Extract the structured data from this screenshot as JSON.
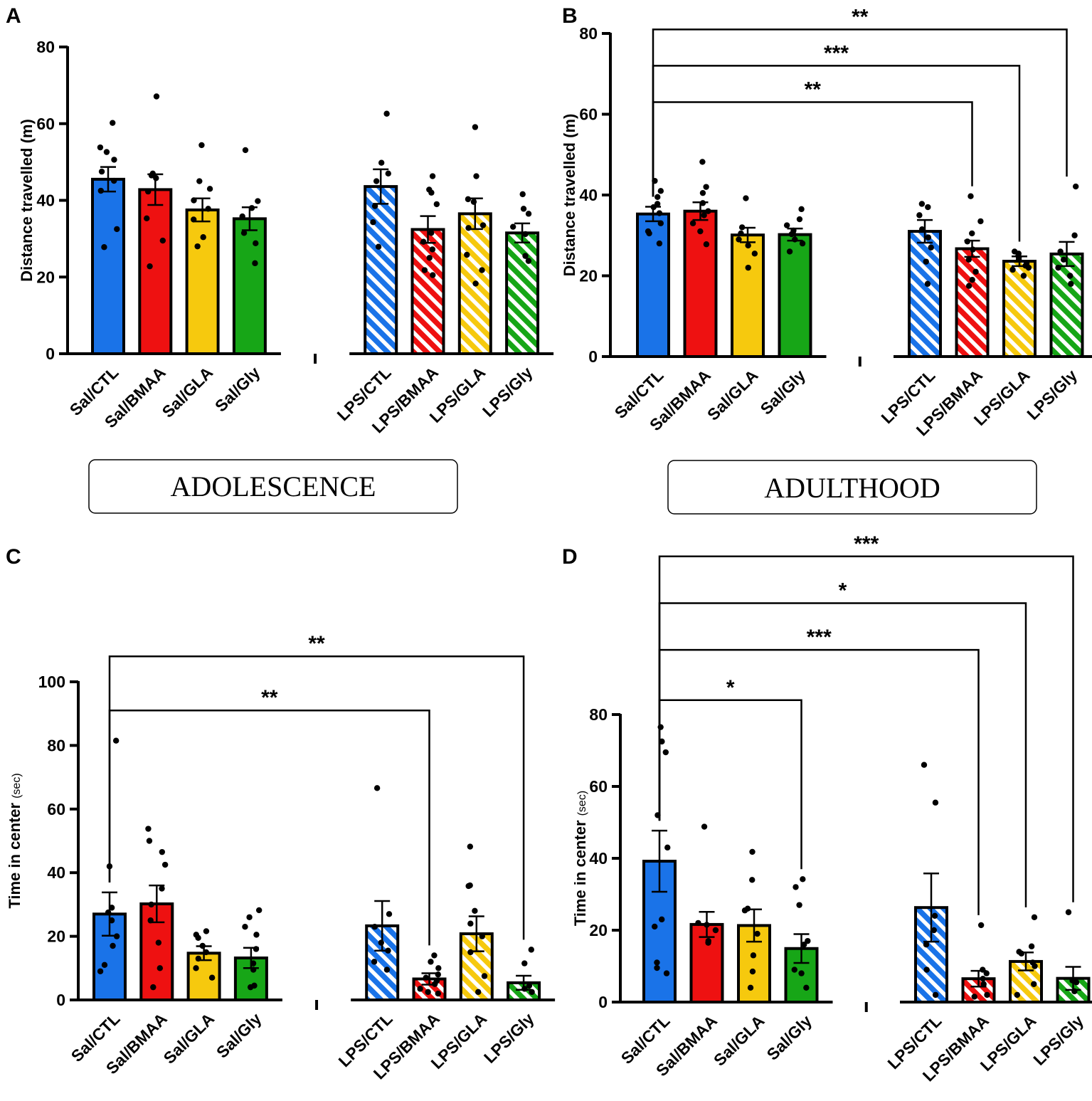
{
  "figure": {
    "period_boxes": [
      {
        "panel": "A",
        "text": "ADOLESCENCE"
      },
      {
        "panel": "B",
        "text": "ADULTHOOD"
      }
    ]
  },
  "palette": {
    "CTL": "#1a73e8",
    "BMAA": "#ee1111",
    "GLA": "#f6c90e",
    "Gly": "#17a617",
    "pattern_stripe": "#ffffff",
    "ink": "#000000"
  },
  "chart_data": [
    {
      "panel": "A",
      "type": "bar",
      "ylabel": "Distance travelled (m)",
      "ylabel_suffix": "",
      "ylim": [
        0,
        80
      ],
      "yticks": [
        "0",
        "20",
        "40",
        "60",
        "80"
      ],
      "categories": [
        "Sal/CTL",
        "Sal/BMAA",
        "Sal/GLA",
        "Sal/Gly",
        "LPS/CTL",
        "LPS/BMAA",
        "LPS/GLA",
        "LPS/Gly"
      ],
      "groups": [
        "CTL",
        "BMAA",
        "GLA",
        "Gly",
        "CTL",
        "BMAA",
        "GLA",
        "Gly"
      ],
      "hatched": [
        false,
        false,
        false,
        false,
        true,
        true,
        true,
        true
      ],
      "values": [
        45.5,
        42.8,
        37.5,
        35.2,
        43.6,
        32.4,
        36.5,
        31.5
      ],
      "sem": [
        3.2,
        4.0,
        3.0,
        3.0,
        4.5,
        3.5,
        4.0,
        2.5
      ],
      "points": [
        [
          60.2,
          53.8,
          52.6,
          50.6,
          47.5,
          45.1,
          42.5,
          32.5,
          27.8
        ],
        [
          67.1,
          47.0,
          46.5,
          45.8,
          42.3,
          35.3,
          29.5,
          22.8
        ],
        [
          54.4,
          45.0,
          43.0,
          40.0,
          37.8,
          35.0,
          30.4,
          28.0
        ],
        [
          53.1,
          39.8,
          38.0,
          35.8,
          31.5,
          28.8,
          23.6
        ],
        [
          62.6,
          49.8,
          47.0,
          45.0,
          38.5,
          34.3,
          27.9
        ],
        [
          46.3,
          42.8,
          42.0,
          39.0,
          31.5,
          29.2,
          27.2,
          25.0,
          21.8,
          20.5
        ],
        [
          59.1,
          46.3,
          40.3,
          39.6,
          33.5,
          32.8,
          25.8,
          21.8,
          18.3
        ],
        [
          41.6,
          37.8,
          36.5,
          33.1,
          31.2,
          25.5,
          24.2
        ]
      ],
      "comparisons": []
    },
    {
      "panel": "B",
      "type": "bar",
      "ylabel": "Distance travelled (m)",
      "ylabel_suffix": "",
      "ylim": [
        0,
        80
      ],
      "yticks": [
        "0",
        "20",
        "40",
        "60",
        "80"
      ],
      "categories": [
        "Sal/CTL",
        "Sal/BMAA",
        "Sal/GLA",
        "Sal/Gly",
        "LPS/CTL",
        "LPS/BMAA",
        "LPS/GLA",
        "LPS/Gly"
      ],
      "groups": [
        "CTL",
        "BMAA",
        "GLA",
        "Gly",
        "CTL",
        "BMAA",
        "GLA",
        "Gly"
      ],
      "hatched": [
        false,
        false,
        false,
        false,
        true,
        true,
        true,
        true
      ],
      "values": [
        35.3,
        36.0,
        30.1,
        30.2,
        31.0,
        26.7,
        23.6,
        25.4
      ],
      "sem": [
        1.8,
        2.2,
        1.8,
        1.5,
        2.8,
        2.0,
        1.2,
        3.0
      ],
      "points": [
        [
          43.5,
          41.0,
          39.5,
          37.8,
          37.0,
          35.5,
          33.0,
          31.0,
          30.5,
          28.0
        ],
        [
          48.2,
          42.0,
          40.5,
          38.0,
          36.0,
          35.0,
          33.0,
          31.0,
          27.8
        ],
        [
          39.2,
          32.0,
          30.5,
          29.0,
          27.5,
          25.5,
          22.0
        ],
        [
          36.5,
          34.0,
          32.5,
          31.2,
          30.3,
          29.0,
          28.0,
          26.0
        ],
        [
          37.8,
          37.0,
          35.0,
          31.5,
          29.5,
          27.0,
          23.5,
          18.0
        ],
        [
          39.7,
          33.5,
          30.5,
          28.5,
          26.5,
          24.0,
          21.0,
          19.0,
          17.5
        ],
        [
          26.0,
          25.5,
          25.0,
          24.5,
          24.0,
          23.0,
          22.5,
          22.0,
          21.5,
          20.0
        ],
        [
          42.1,
          30.0,
          26.0,
          24.0,
          22.0,
          20.0,
          18.0
        ]
      ],
      "comparisons": [
        {
          "from": 0,
          "to": 5,
          "y": 63,
          "label": "**"
        },
        {
          "from": 0,
          "to": 6,
          "y": 72,
          "label": "***"
        },
        {
          "from": 0,
          "to": 7,
          "y": 81,
          "label": "**"
        }
      ]
    },
    {
      "panel": "C",
      "type": "bar",
      "ylabel": "Time in center",
      "ylabel_suffix": "(sec)",
      "ylim": [
        0,
        100
      ],
      "yticks": [
        "0",
        "20",
        "40",
        "60",
        "80",
        "100"
      ],
      "categories": [
        "Sal/CTL",
        "Sal/BMAA",
        "Sal/GLA",
        "Sal/Gly",
        "LPS/CTL",
        "LPS/BMAA",
        "LPS/GLA",
        "LPS/Gly"
      ],
      "groups": [
        "CTL",
        "BMAA",
        "GLA",
        "Gly",
        "CTL",
        "BMAA",
        "GLA",
        "Gly"
      ],
      "hatched": [
        false,
        false,
        false,
        false,
        true,
        true,
        true,
        true
      ],
      "values": [
        27.0,
        30.2,
        14.7,
        13.2,
        23.3,
        6.6,
        20.8,
        5.4
      ],
      "sem": [
        6.8,
        5.8,
        2.2,
        3.2,
        7.8,
        1.8,
        5.5,
        2.2
      ],
      "points": [
        [
          81.5,
          42.0,
          29.0,
          27.5,
          25.0,
          20.0,
          17.0,
          11.0,
          9.0
        ],
        [
          53.8,
          50.0,
          46.5,
          42.5,
          35.0,
          30.0,
          25.0,
          18.0,
          10.0,
          4.0
        ],
        [
          21.6,
          20.5,
          19.5,
          17.0,
          15.0,
          13.0,
          10.0,
          7.0
        ],
        [
          28.2,
          26.0,
          23.0,
          20.5,
          16.0,
          11.5,
          9.5,
          4.5,
          4.0
        ],
        [
          66.6,
          27.0,
          23.0,
          18.0,
          15.5,
          12.0,
          9.5
        ],
        [
          14.0,
          12.0,
          10.0,
          8.0,
          7.0,
          6.0,
          5.0,
          3.5,
          2.5,
          2.0
        ],
        [
          48.2,
          36.0,
          35.8,
          28.0,
          24.0,
          20.0,
          15.0,
          7.5,
          2.5
        ],
        [
          15.8,
          11.5,
          4.5,
          3.5,
          2.5
        ]
      ],
      "comparisons": [
        {
          "from": 0,
          "to": 5,
          "y": 91,
          "label": "**"
        },
        {
          "from": 0,
          "to": 7,
          "y": 108,
          "label": "**"
        }
      ]
    },
    {
      "panel": "D",
      "type": "bar",
      "ylabel": "Time in center",
      "ylabel_suffix": "(sec)",
      "ylim": [
        0,
        80
      ],
      "yticks": [
        "0",
        "20",
        "40",
        "60",
        "80"
      ],
      "categories": [
        "Sal/CTL",
        "Sal/BMAA",
        "Sal/GLA",
        "Sal/Gly",
        "LPS/CTL",
        "LPS/BMAA",
        "LPS/GLA",
        "LPS/Gly"
      ],
      "groups": [
        "CTL",
        "BMAA",
        "GLA",
        "Gly",
        "CTL",
        "BMAA",
        "GLA",
        "Gly"
      ],
      "hatched": [
        false,
        false,
        false,
        false,
        true,
        true,
        true,
        true
      ],
      "values": [
        39.2,
        21.6,
        21.3,
        14.9,
        26.3,
        6.5,
        11.3,
        6.6
      ],
      "sem": [
        8.5,
        3.5,
        4.5,
        4.0,
        9.5,
        2.2,
        2.5,
        3.2
      ],
      "points": [
        [
          76.5,
          72.5,
          69.5,
          52.0,
          43.0,
          23.0,
          21.0,
          11.0,
          9.5,
          8.0
        ],
        [
          48.8,
          22.0,
          21.5,
          20.0,
          17.0,
          16.5
        ],
        [
          41.8,
          34.0,
          26.0,
          25.5,
          19.0,
          13.0,
          8.5,
          4.0
        ],
        [
          34.2,
          32.0,
          27.0,
          17.0,
          16.0,
          9.0,
          8.0,
          4.0
        ],
        [
          66.0,
          55.5,
          24.0,
          20.0,
          16.0,
          9.0,
          2.0
        ],
        [
          21.4,
          9.0,
          8.0,
          6.5,
          5.0,
          2.0,
          1.5
        ],
        [
          23.6,
          15.5,
          14.0,
          13.5,
          11.0,
          10.0,
          5.0,
          2.0
        ],
        [
          25.0,
          6.0,
          5.5,
          3.0
        ]
      ],
      "comparisons": [
        {
          "from": 0,
          "to": 3,
          "y": 84,
          "label": "*"
        },
        {
          "from": 0,
          "to": 5,
          "y": 98,
          "label": "***"
        },
        {
          "from": 0,
          "to": 6,
          "y": 111,
          "label": "*"
        },
        {
          "from": 0,
          "to": 7,
          "y": 124,
          "label": "***"
        }
      ]
    }
  ]
}
